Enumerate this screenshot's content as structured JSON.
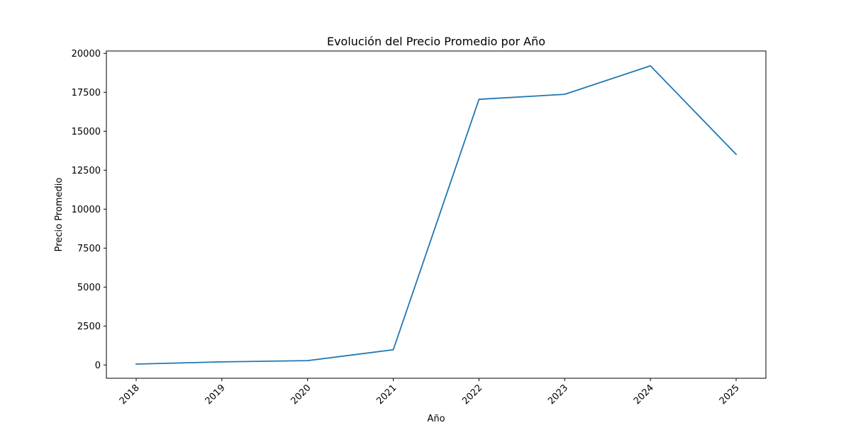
{
  "chart_data": {
    "type": "line",
    "title": "Evolución del Precio Promedio por Año",
    "xlabel": "Año",
    "ylabel": "Precio Promedio",
    "x": [
      "2018",
      "2019",
      "2020",
      "2021",
      "2022",
      "2023",
      "2024",
      "2025"
    ],
    "series": [
      {
        "values": [
          60,
          200,
          280,
          980,
          17050,
          17370,
          19200,
          13520
        ]
      }
    ],
    "ylim": [
      -850,
      20150
    ],
    "yticks": [
      0,
      2500,
      5000,
      7500,
      10000,
      12500,
      15000,
      17500,
      20000
    ],
    "xtick_rotation": -45,
    "grid": false,
    "legend": "none",
    "colors": {
      "line": "#1f77b4",
      "axes": "#000000",
      "background": "#ffffff"
    }
  }
}
